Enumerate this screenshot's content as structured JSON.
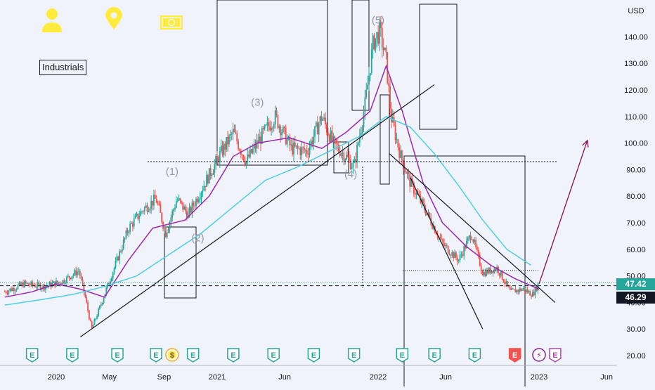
{
  "sector_label": "Industrials",
  "currency": "USD",
  "price_tags": {
    "current": "47.42",
    "close": "46.29"
  },
  "chart_data": {
    "type": "line",
    "xlabel": "",
    "ylabel": "",
    "y_axis_position": "right",
    "ylim": [
      17,
      153
    ],
    "y_ticks": [
      "20.00",
      "30.00",
      "40.00",
      "50.00",
      "60.00",
      "70.00",
      "80.00",
      "90.00",
      "100.00",
      "110.00",
      "120.00",
      "130.00",
      "140.00"
    ],
    "x_ticks": [
      "2020",
      "May",
      "Sep",
      "2021",
      "Jun",
      "2022",
      "Jun",
      "2023",
      "Jun"
    ],
    "grid": false,
    "wave_labels": [
      {
        "label": "(1)",
        "date": "2020.72",
        "value": 88
      },
      {
        "label": "(2)",
        "date": "2020.88",
        "value": 63
      },
      {
        "label": "(3)",
        "date": "2021.25",
        "value": 114
      },
      {
        "label": "(4)",
        "date": "2021.83",
        "value": 87
      },
      {
        "label": "(5)",
        "date": "2022.00",
        "value": 145
      }
    ],
    "price_path": [
      [
        "2019.68",
        44
      ],
      [
        "2019.80",
        47
      ],
      [
        "2019.92",
        46
      ],
      [
        "2020.04",
        48
      ],
      [
        "2020.14",
        52
      ],
      [
        "2020.18",
        42
      ],
      [
        "2020.22",
        30
      ],
      [
        "2020.27",
        38
      ],
      [
        "2020.36",
        53
      ],
      [
        "2020.45",
        68
      ],
      [
        "2020.54",
        75
      ],
      [
        "2020.62",
        79
      ],
      [
        "2020.68",
        66
      ],
      [
        "2020.75",
        79
      ],
      [
        "2020.82",
        73
      ],
      [
        "2020.95",
        88
      ],
      [
        "2021.02",
        96
      ],
      [
        "2021.10",
        104
      ],
      [
        "2021.18",
        93
      ],
      [
        "2021.28",
        103
      ],
      [
        "2021.36",
        110
      ],
      [
        "2021.46",
        98
      ],
      [
        "2021.56",
        97
      ],
      [
        "2021.65",
        110
      ],
      [
        "2021.72",
        100
      ],
      [
        "2021.80",
        95
      ],
      [
        "2021.85",
        91
      ],
      [
        "2021.92",
        115
      ],
      [
        "2021.97",
        138
      ],
      [
        "2022.01",
        142
      ],
      [
        "2022.05",
        131
      ],
      [
        "2022.08",
        110
      ],
      [
        "2022.14",
        95
      ],
      [
        "2022.20",
        85
      ],
      [
        "2022.30",
        74
      ],
      [
        "2022.40",
        62
      ],
      [
        "2022.50",
        56
      ],
      [
        "2022.58",
        66
      ],
      [
        "2022.65",
        51
      ],
      [
        "2022.74",
        53
      ],
      [
        "2022.82",
        44
      ],
      [
        "2022.90",
        45
      ],
      [
        "2022.96",
        43
      ],
      [
        "2023.00",
        47.4
      ]
    ],
    "series": [
      {
        "name": "",
        "color": "#9c27b0",
        "points": [
          [
            "2019.68",
            42
          ],
          [
            "2019.85",
            44
          ],
          [
            "2020.00",
            47
          ],
          [
            "2020.15",
            45
          ],
          [
            "2020.30",
            42
          ],
          [
            "2020.45",
            56
          ],
          [
            "2020.60",
            68
          ],
          [
            "2020.80",
            71
          ],
          [
            "2020.95",
            80
          ],
          [
            "2021.10",
            95
          ],
          [
            "2021.25",
            100
          ],
          [
            "2021.45",
            102
          ],
          [
            "2021.65",
            98
          ],
          [
            "2021.80",
            104
          ],
          [
            "2021.95",
            112
          ],
          [
            "2022.05",
            129
          ],
          [
            "2022.15",
            112
          ],
          [
            "2022.28",
            85
          ],
          [
            "2022.40",
            70
          ],
          [
            "2022.55",
            61
          ],
          [
            "2022.70",
            54
          ],
          [
            "2022.85",
            49
          ],
          [
            "2023.00",
            45
          ]
        ]
      },
      {
        "name": "",
        "color": "#4dd0e1",
        "points": [
          [
            "2019.68",
            39
          ],
          [
            "2019.90",
            41
          ],
          [
            "2020.10",
            43
          ],
          [
            "2020.30",
            46
          ],
          [
            "2020.50",
            50
          ],
          [
            "2020.70",
            58
          ],
          [
            "2020.90",
            66
          ],
          [
            "2021.10",
            76
          ],
          [
            "2021.30",
            86
          ],
          [
            "2021.50",
            91
          ],
          [
            "2021.70",
            97
          ],
          [
            "2021.90",
            103
          ],
          [
            "2022.05",
            110
          ],
          [
            "2022.20",
            106
          ],
          [
            "2022.35",
            96
          ],
          [
            "2022.50",
            84
          ],
          [
            "2022.65",
            71
          ],
          [
            "2022.80",
            60
          ],
          [
            "2022.95",
            54
          ]
        ]
      }
    ],
    "annotations": {
      "forecast_arrow": [
        [
          "2023.00",
          47
        ],
        [
          "2023.30",
          101
        ]
      ],
      "support_trendline": [
        [
          "2020.15",
          27
        ],
        [
          "2022.35",
          122
        ]
      ],
      "channel_upper": [
        [
          "2022.07",
          96
        ],
        [
          "2023.10",
          40
        ]
      ],
      "channel_lower": [
        [
          "2022.20",
          87
        ],
        [
          "2022.65",
          30
        ]
      ],
      "horizontal_level": 93,
      "resistance_level": 52,
      "current_price": 47.42,
      "close_price": 46.29
    },
    "event_markers": [
      {
        "type": "earnings",
        "glyph": "E",
        "date": "2019.85"
      },
      {
        "type": "earnings",
        "glyph": "E",
        "date": "2020.10"
      },
      {
        "type": "earnings",
        "glyph": "E",
        "date": "2020.38"
      },
      {
        "type": "earnings",
        "glyph": "E",
        "date": "2020.62"
      },
      {
        "type": "dividend",
        "glyph": "$",
        "date": "2020.72"
      },
      {
        "type": "earnings",
        "glyph": "E",
        "date": "2020.85"
      },
      {
        "type": "earnings",
        "glyph": "E",
        "date": "2021.10"
      },
      {
        "type": "earnings",
        "glyph": "E",
        "date": "2021.35"
      },
      {
        "type": "earnings",
        "glyph": "E",
        "date": "2021.60"
      },
      {
        "type": "earnings",
        "glyph": "E",
        "date": "2021.85"
      },
      {
        "type": "earnings",
        "glyph": "E",
        "date": "2022.15"
      },
      {
        "type": "earnings",
        "glyph": "E",
        "date": "2022.35"
      },
      {
        "type": "earnings",
        "glyph": "E",
        "date": "2022.60"
      },
      {
        "type": "earnings-miss",
        "glyph": "E",
        "date": "2022.85"
      },
      {
        "type": "split",
        "glyph": "⚡",
        "date": "2023.00"
      },
      {
        "type": "earnings-upcoming",
        "glyph": "E",
        "date": "2023.10"
      }
    ]
  },
  "icons": [
    "user-icon",
    "location-pin-icon",
    "cash-icon"
  ],
  "colors": {
    "background": "#f0f3fa",
    "candle_up": "#26a69a",
    "candle_down": "#ef5350",
    "accent_yellow": "#ffeb3b",
    "arrow_purple": "#880e4f",
    "earnings_green": "#26a69a",
    "earnings_red": "#ef5350"
  }
}
